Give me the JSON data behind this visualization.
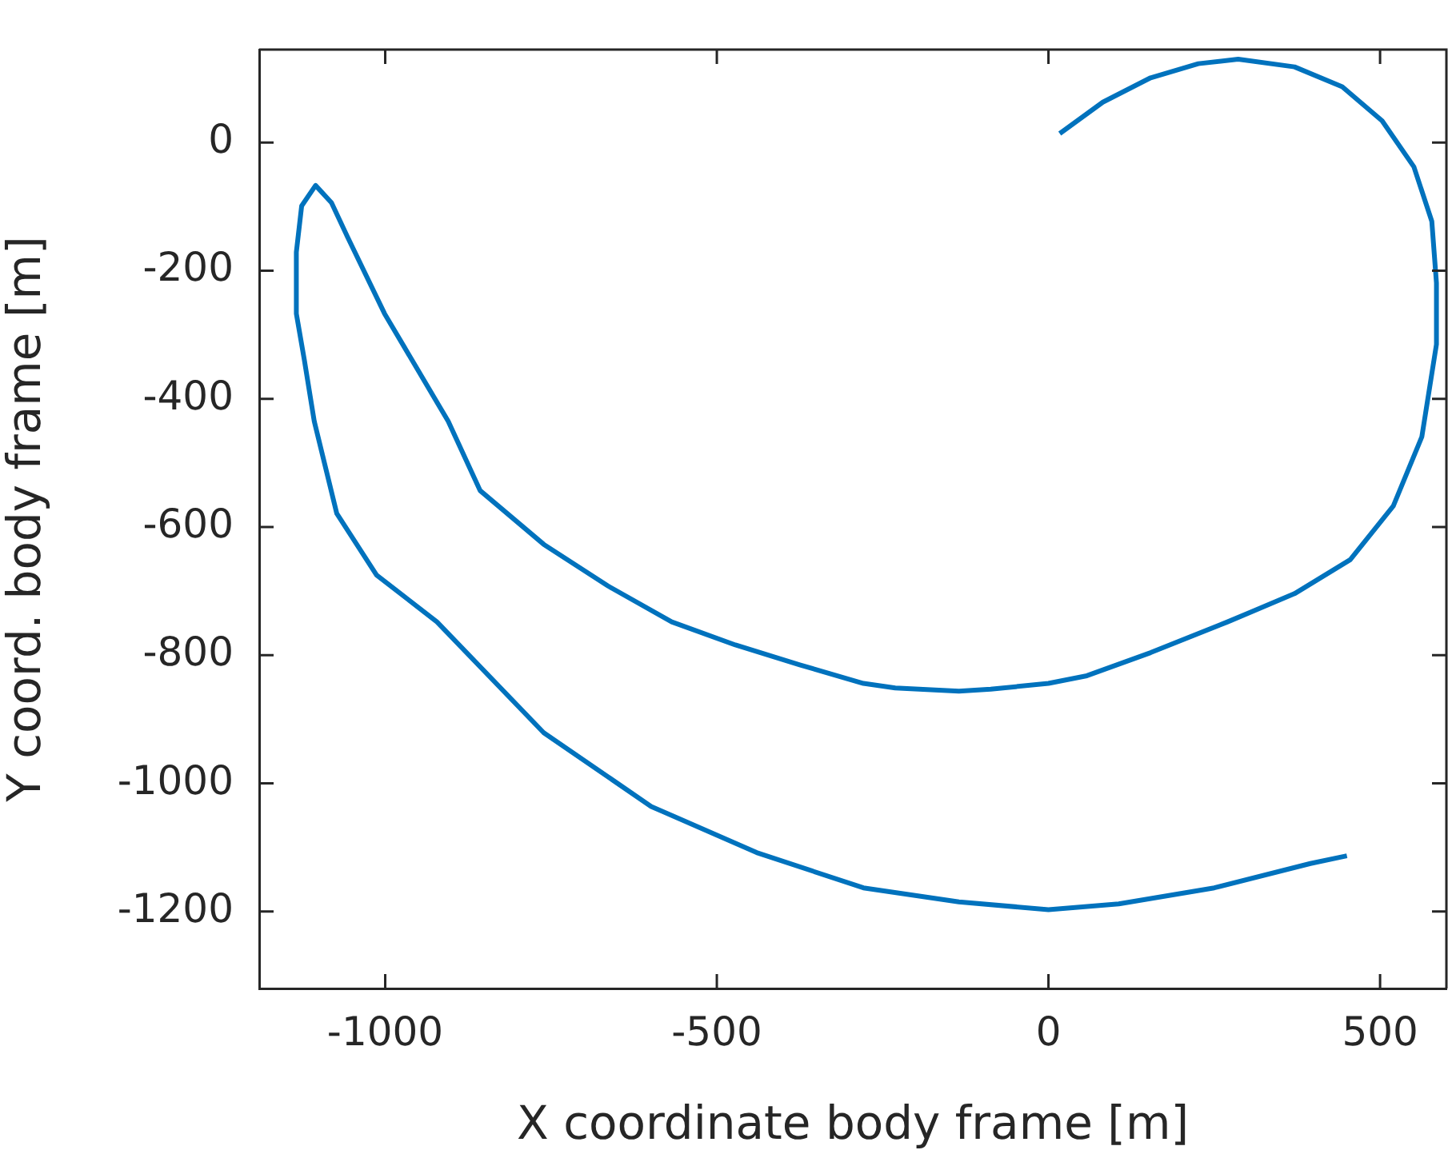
{
  "chart_data": {
    "type": "line",
    "xlabel": "X coordinate body frame [m]",
    "ylabel": "Y coord. body frame [m]",
    "x": [
      17,
      82,
      154,
      226,
      286,
      371,
      443,
      503,
      551,
      578,
      585,
      585,
      563,
      520,
      455,
      371,
      270,
      154,
      58,
      0,
      -87,
      -135,
      -231,
      -279,
      -375,
      -472,
      -568,
      -664,
      -761,
      -857,
      -905,
      -1001,
      -1057,
      -1081,
      -1105,
      -1126,
      -1134,
      -1134,
      -1122,
      -1107,
      -1073,
      -1013,
      -922,
      -761,
      -599,
      -440,
      -279,
      -135,
      0,
      106,
      250,
      395,
      450
    ],
    "series": [
      {
        "color": "#0072bd",
        "values": [
          14,
          63,
          101,
          123,
          130,
          118,
          87,
          34,
          -38,
          -123,
          -219,
          -315,
          -459,
          -567,
          -651,
          -704,
          -748,
          -796,
          -832,
          -844,
          -853,
          -856,
          -851,
          -844,
          -815,
          -784,
          -748,
          -692,
          -627,
          -543,
          -435,
          -267,
          -147,
          -94,
          -67,
          -99,
          -171,
          -267,
          -339,
          -435,
          -579,
          -675,
          -748,
          -921,
          -1036,
          -1108,
          -1163,
          -1185,
          -1197,
          -1188,
          -1163,
          -1125,
          -1113
        ]
      }
    ],
    "xlim": [
      -1190,
      600
    ],
    "xticks": [
      -1000,
      -500,
      0,
      500
    ],
    "ylim": [
      -1320,
      145
    ],
    "yticks": [
      -1200,
      -1000,
      -800,
      -600,
      -400,
      -200,
      0
    ],
    "grid": false,
    "legend": false,
    "marker": "none"
  }
}
